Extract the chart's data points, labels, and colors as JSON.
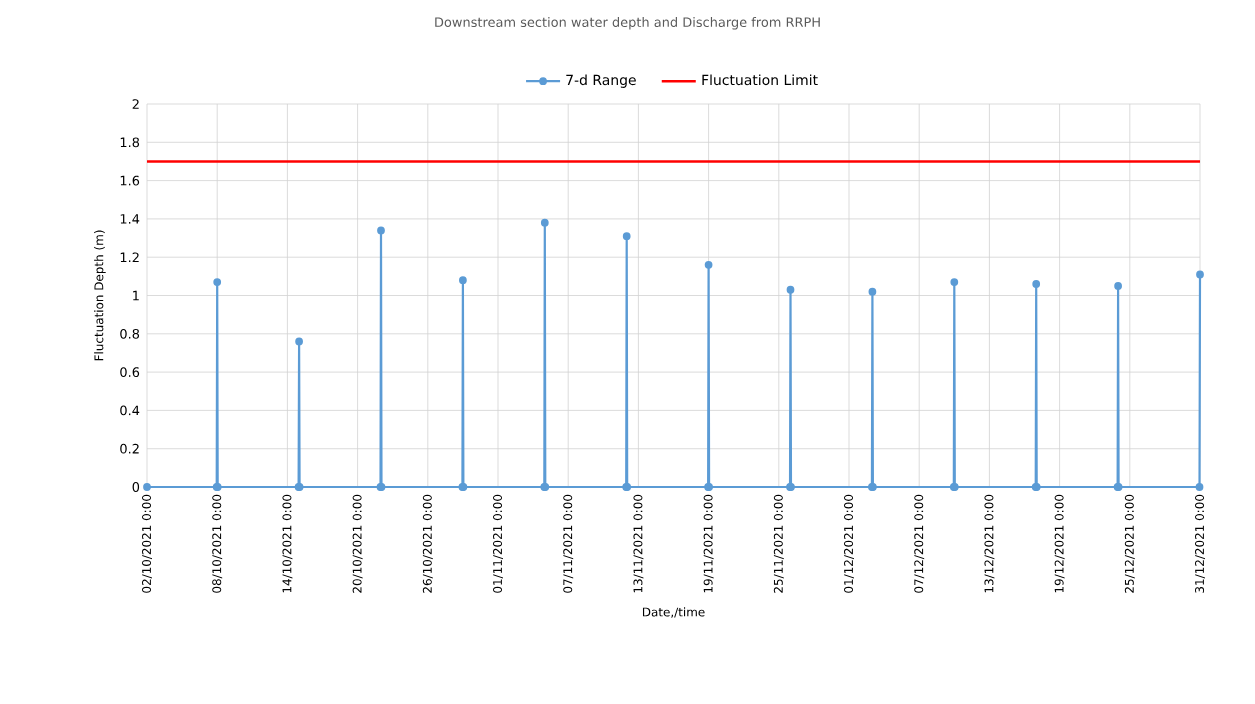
{
  "chart_data": {
    "type": "line",
    "title": "Downstream section water depth and Discharge from RRPH",
    "xlabel": "Date,/time",
    "ylabel": "Fluctuation Depth (m)",
    "x": [
      "2021-10-02T00:00",
      "2021-10-07T23:00",
      "2021-10-08T00:00",
      "2021-10-08T01:00",
      "2021-10-14T23:00",
      "2021-10-15T00:00",
      "2021-10-15T01:00",
      "2021-10-21T23:00",
      "2021-10-22T00:00",
      "2021-10-22T01:00",
      "2021-10-28T23:00",
      "2021-10-29T00:00",
      "2021-10-29T01:00",
      "2021-11-04T23:00",
      "2021-11-05T00:00",
      "2021-11-05T01:00",
      "2021-11-11T23:00",
      "2021-11-12T00:00",
      "2021-11-12T01:00",
      "2021-11-18T23:00",
      "2021-11-19T00:00",
      "2021-11-19T01:00",
      "2021-11-25T23:00",
      "2021-11-26T00:00",
      "2021-11-26T01:00",
      "2021-12-02T23:00",
      "2021-12-03T00:00",
      "2021-12-03T01:00",
      "2021-12-09T23:00",
      "2021-12-10T00:00",
      "2021-12-10T01:00",
      "2021-12-16T23:00",
      "2021-12-17T00:00",
      "2021-12-17T01:00",
      "2021-12-23T23:00",
      "2021-12-24T00:00",
      "2021-12-24T01:00",
      "2021-12-30T23:00",
      "2021-12-31T00:00"
    ],
    "series": [
      {
        "name": "7-d Range",
        "color": "#5b9bd5",
        "values": [
          0,
          0,
          1.07,
          0,
          0,
          0.76,
          0,
          0,
          1.34,
          0,
          0,
          1.08,
          0,
          0,
          1.38,
          0,
          0,
          1.31,
          0,
          0,
          1.16,
          0,
          0,
          1.03,
          0,
          0,
          1.02,
          0,
          0,
          1.07,
          0,
          0,
          1.06,
          0,
          0,
          1.05,
          0,
          0,
          1.11
        ]
      }
    ],
    "ref_lines": [
      {
        "axis": "y",
        "value": 1.7,
        "label": "Fluctuation Limit",
        "color": "#ff0000"
      }
    ],
    "xlim": [
      "2021-10-02",
      "2021-12-31"
    ],
    "xticks": [
      {
        "value": "2021-10-02",
        "label": "02/10/2021 0:00"
      },
      {
        "value": "2021-10-08",
        "label": "08/10/2021 0:00"
      },
      {
        "value": "2021-10-14",
        "label": "14/10/2021 0:00"
      },
      {
        "value": "2021-10-20",
        "label": "20/10/2021 0:00"
      },
      {
        "value": "2021-10-26",
        "label": "26/10/2021 0:00"
      },
      {
        "value": "2021-11-01",
        "label": "01/11/2021 0:00"
      },
      {
        "value": "2021-11-07",
        "label": "07/11/2021 0:00"
      },
      {
        "value": "2021-11-13",
        "label": "13/11/2021 0:00"
      },
      {
        "value": "2021-11-19",
        "label": "19/11/2021 0:00"
      },
      {
        "value": "2021-11-25",
        "label": "25/11/2021 0:00"
      },
      {
        "value": "2021-12-01",
        "label": "01/12/2021 0:00"
      },
      {
        "value": "2021-12-07",
        "label": "07/12/2021 0:00"
      },
      {
        "value": "2021-12-13",
        "label": "13/12/2021 0:00"
      },
      {
        "value": "2021-12-19",
        "label": "19/12/2021 0:00"
      },
      {
        "value": "2021-12-25",
        "label": "25/12/2021 0:00"
      },
      {
        "value": "2021-12-31",
        "label": "31/12/2021 0:00"
      }
    ],
    "ylim": [
      0,
      2
    ],
    "yticks": [
      0,
      0.2,
      0.4,
      0.6,
      0.8,
      1,
      1.2,
      1.4,
      1.6,
      1.8,
      2
    ],
    "grid": true,
    "legend": "top",
    "marker": "circle",
    "line_style": "solid"
  }
}
